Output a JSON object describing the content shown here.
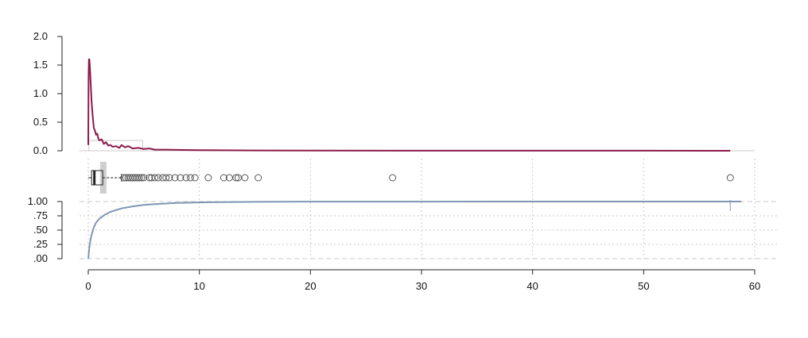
{
  "chart_data": [
    {
      "type": "line",
      "panel": "density",
      "x_range": [
        0,
        60
      ],
      "y_range": [
        0,
        2.0
      ],
      "y_ticks": [
        0.0,
        0.5,
        1.0,
        1.5,
        2.0
      ],
      "y_tick_labels": [
        "0.0",
        "0.5",
        "1.0",
        "1.5",
        "2.0"
      ],
      "series": [
        {
          "x": [
            0.0,
            0.03,
            0.06,
            0.1,
            0.15,
            0.2,
            0.25,
            0.3,
            0.4,
            0.5,
            0.6,
            0.7,
            0.8,
            0.9,
            1.0,
            1.2,
            1.4,
            1.6,
            1.8,
            2.0,
            2.2,
            2.5,
            2.8,
            3.0,
            3.3,
            3.6,
            4.0,
            4.5,
            5.0,
            5.5,
            6.0,
            7.0,
            8.0,
            10.0,
            12.0,
            15.0,
            20.0,
            27.4,
            30.0,
            40.0,
            50.0,
            57.8
          ],
          "y": [
            0.1,
            1.3,
            1.6,
            1.6,
            1.45,
            1.25,
            1.05,
            0.85,
            0.6,
            0.4,
            0.35,
            0.28,
            0.3,
            0.22,
            0.18,
            0.2,
            0.12,
            0.15,
            0.09,
            0.1,
            0.07,
            0.08,
            0.05,
            0.1,
            0.06,
            0.08,
            0.04,
            0.05,
            0.03,
            0.04,
            0.02,
            0.02,
            0.015,
            0.01,
            0.008,
            0.006,
            0.003,
            0.002,
            0.002,
            0.002,
            0.002,
            0.0
          ]
        }
      ],
      "colors": {
        "line": "#8b1a4a",
        "box": "#c8c8c8",
        "axis": "#222222"
      },
      "annotation_rect": {
        "x": [
          0.05,
          4.9
        ],
        "y": [
          0,
          0.18
        ]
      }
    },
    {
      "type": "box",
      "panel": "boxplot",
      "q1": 0.3,
      "median": 0.55,
      "q3": 1.3,
      "whisker_low": 0.0,
      "whisker_high": 3.0,
      "mean": 1.35,
      "outliers": [
        3.2,
        3.4,
        3.6,
        3.8,
        4.0,
        4.2,
        4.4,
        4.6,
        4.8,
        5.0,
        5.5,
        5.7,
        6.0,
        6.3,
        6.7,
        7.0,
        7.3,
        7.8,
        8.3,
        8.8,
        9.2,
        9.6,
        10.8,
        12.2,
        12.7,
        13.3,
        13.5,
        14.1,
        15.3,
        27.4,
        57.8
      ],
      "colors": {
        "box": "#222222",
        "mean_band": "#cfcfcf",
        "outlier": "#555555"
      }
    },
    {
      "type": "line",
      "panel": "ecdf",
      "x_range": [
        0,
        60
      ],
      "y_range": [
        0,
        1.0
      ],
      "y_ticks": [
        0.0,
        0.25,
        0.5,
        0.75,
        1.0
      ],
      "y_tick_labels": [
        ".00",
        ".25",
        ".50",
        ".75",
        "1.00"
      ],
      "x_ticks": [
        0,
        10,
        20,
        30,
        40,
        50,
        60
      ],
      "x_tick_labels": [
        "0",
        "10",
        "20",
        "30",
        "40",
        "50",
        "60"
      ],
      "grid": true,
      "series": [
        {
          "x": [
            0.0,
            0.05,
            0.1,
            0.2,
            0.3,
            0.5,
            0.7,
            1.0,
            1.5,
            2.0,
            3.0,
            4.0,
            5.0,
            6.0,
            8.0,
            10.0,
            12.0,
            15.0,
            20.0,
            27.4,
            40.0,
            57.8
          ],
          "y": [
            0.0,
            0.1,
            0.2,
            0.33,
            0.42,
            0.55,
            0.63,
            0.7,
            0.77,
            0.82,
            0.88,
            0.915,
            0.94,
            0.955,
            0.975,
            0.985,
            0.99,
            0.995,
            0.998,
            0.999,
            0.9995,
            1.0
          ]
        }
      ],
      "colors": {
        "line": "#7f96b3",
        "grid": "#c8c8c8",
        "axis": "#222222"
      }
    }
  ]
}
